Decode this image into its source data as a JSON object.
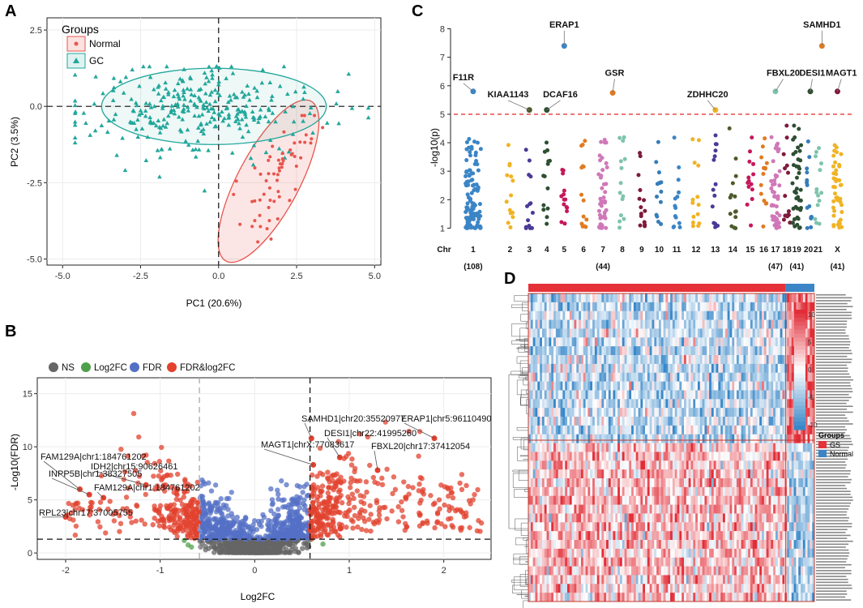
{
  "panels": {
    "a": "A",
    "b": "B",
    "c": "C",
    "d": "D"
  },
  "colors": {
    "normal": "#e8554e",
    "gc": "#22a79b",
    "ns": "#666666",
    "log2fc": "#4fa04a",
    "fdr": "#5470c6",
    "both": "#e2412e",
    "gs_bar": "#e53238",
    "normal_bar": "#3b85c6"
  },
  "chart_data": [
    {
      "id": "pca",
      "type": "scatter",
      "xlabel": "PC1 (20.6%)",
      "ylabel": "PC2 (3.5%)",
      "xlim": [
        -5.5,
        5.2
      ],
      "ylim": [
        -5.2,
        2.9
      ],
      "xticks": [
        "-5.0",
        "-2.5",
        "0.0",
        "2.5",
        "5.0"
      ],
      "yticks": [
        "2.5",
        "0.0",
        "-2.5",
        "-5.0"
      ],
      "legend_title": "Groups",
      "series": [
        {
          "name": "Normal",
          "n": 60,
          "cx": 1.8,
          "cy": -2.4,
          "sx": 1.1,
          "sy": 1.0,
          "seed": 7
        },
        {
          "name": "GC",
          "n": 300,
          "cx": -0.5,
          "cy": 0.0,
          "sx": 2.0,
          "sy": 0.6,
          "seed": 11
        }
      ],
      "ellipses": [
        {
          "group": "Normal",
          "cx": 1.6,
          "cy": -2.45,
          "rx": 2.9,
          "ry": 1.8,
          "angle": 62
        },
        {
          "group": "GC",
          "cx": -0.15,
          "cy": 0.0,
          "rx": 3.6,
          "ry": 1.25,
          "angle": 0
        }
      ],
      "hline": 0.0,
      "vline": 0.0
    },
    {
      "id": "volcano",
      "type": "scatter",
      "xlabel": "Log2FC",
      "ylabel": "-Log10(FDR)",
      "xlim": [
        -2.3,
        2.5
      ],
      "ylim": [
        -0.6,
        16.5
      ],
      "xticks": [
        "-2",
        "-1",
        "0",
        "1",
        "2"
      ],
      "yticks": [
        "0",
        "5",
        "10",
        "15"
      ],
      "legend": [
        "NS",
        "Log2FC",
        "FDR",
        "FDR&log2FC"
      ],
      "vlines": [
        -0.585,
        0.585
      ],
      "hline": 1.3,
      "labels": [
        {
          "text": "SAMHD1|chr20:35520977",
          "x": 0.6,
          "y": 10.8
        },
        {
          "text": "ERAP1|chr5:96110490",
          "x": 1.9,
          "y": 10.8
        },
        {
          "text": "DESI1|chr22:41995260",
          "x": 0.9,
          "y": 9.0
        },
        {
          "text": "MAGT1|chrX:77083617",
          "x": 0.62,
          "y": 8.3
        },
        {
          "text": "FBXL20|chr17:37412054",
          "x": 1.3,
          "y": 7.8
        },
        {
          "text": "FAM129A|chr1:184761202",
          "x": -1.85,
          "y": 6.0
        },
        {
          "text": "IDH2|chr15:90626461",
          "x": -1.15,
          "y": 6.4
        },
        {
          "text": "INPP5B|chr1:38327505",
          "x": -1.75,
          "y": 5.5
        },
        {
          "text": "FAM129A|chr1:184761202",
          "x": -1.6,
          "y": 5.2
        },
        {
          "text": "RPL23|chr17:37005755",
          "x": -2.0,
          "y": 3.4
        }
      ]
    },
    {
      "id": "manhattan",
      "type": "scatter",
      "ylabel": "-log10(p)",
      "ylim": [
        0.7,
        8.1
      ],
      "yticks": [
        "1",
        "2",
        "3",
        "4",
        "5",
        "6",
        "7",
        "8"
      ],
      "threshold": 5.0,
      "chromosomes": [
        "1",
        "2",
        "3",
        "4",
        "5",
        "6",
        "7",
        "8",
        "9",
        "10",
        "11",
        "12",
        "13",
        "14",
        "15",
        "16",
        "17",
        "18",
        "19",
        "20",
        "21",
        "X"
      ],
      "chr_tick_labels": [
        {
          "label": "Chr",
          "pos": -1.5
        },
        {
          "label": "1",
          "pos": 0.5,
          "count": "(108)"
        },
        {
          "label": "2",
          "pos": 2.4
        },
        {
          "label": "3",
          "pos": 3.4
        },
        {
          "label": "4",
          "pos": 4.3
        },
        {
          "label": "5",
          "pos": 5.2
        },
        {
          "label": "6",
          "pos": 6.2
        },
        {
          "label": "7",
          "pos": 7.2,
          "count": "(44)"
        },
        {
          "label": "8",
          "pos": 8.2
        },
        {
          "label": "9",
          "pos": 9.2
        },
        {
          "label": "10",
          "pos": 10.1
        },
        {
          "label": "11",
          "pos": 11.0
        },
        {
          "label": "12",
          "pos": 12.0
        },
        {
          "label": "13",
          "pos": 13.0
        },
        {
          "label": "14",
          "pos": 13.9
        },
        {
          "label": "15",
          "pos": 14.8
        },
        {
          "label": "16",
          "pos": 15.5
        },
        {
          "label": "17",
          "pos": 16.1,
          "count": "(47)"
        },
        {
          "label": "18",
          "pos": 16.7
        },
        {
          "label": "19",
          "pos": 17.2,
          "count": "(41)"
        },
        {
          "label": "20",
          "pos": 17.8
        },
        {
          "label": "21",
          "pos": 18.3
        },
        {
          "label": "X",
          "pos": 19.3,
          "count": "(41)"
        }
      ],
      "labels": [
        {
          "gene": "ERAP1",
          "x": 5.2,
          "y": 7.4,
          "tx": 5.2,
          "ty": 8.05
        },
        {
          "gene": "SAMHD1",
          "x": 18.5,
          "y": 7.4,
          "tx": 18.5,
          "ty": 8.05
        },
        {
          "gene": "F11R",
          "x": 0.5,
          "y": 5.8,
          "tx": 0.0,
          "ty": 6.2
        },
        {
          "gene": "GSR",
          "x": 7.7,
          "y": 5.75,
          "tx": 7.8,
          "ty": 6.35
        },
        {
          "gene": "FBXL20",
          "x": 16.1,
          "y": 5.8,
          "tx": 16.5,
          "ty": 6.35
        },
        {
          "gene": "DESI1",
          "x": 17.9,
          "y": 5.8,
          "tx": 18.0,
          "ty": 6.35
        },
        {
          "gene": "MAGT1",
          "x": 19.3,
          "y": 5.8,
          "tx": 19.5,
          "ty": 6.35
        },
        {
          "gene": "KIAA1143",
          "x": 3.4,
          "y": 5.15,
          "tx": 2.3,
          "ty": 5.6
        },
        {
          "gene": "DCAF16",
          "x": 4.3,
          "y": 5.15,
          "tx": 5.0,
          "ty": 5.6
        },
        {
          "gene": "ZDHHC20",
          "x": 13.0,
          "y": 5.15,
          "tx": 12.6,
          "ty": 5.6
        }
      ]
    },
    {
      "id": "heatmap",
      "type": "heatmap",
      "colorbar_ticks": [
        "10",
        "5",
        "0",
        "-5",
        "-10"
      ],
      "legend_title": "Groups",
      "legend": [
        "GS",
        "Normal"
      ],
      "rows": 105,
      "cols": 250,
      "normal_cols": 25,
      "top_rows": 50
    }
  ]
}
